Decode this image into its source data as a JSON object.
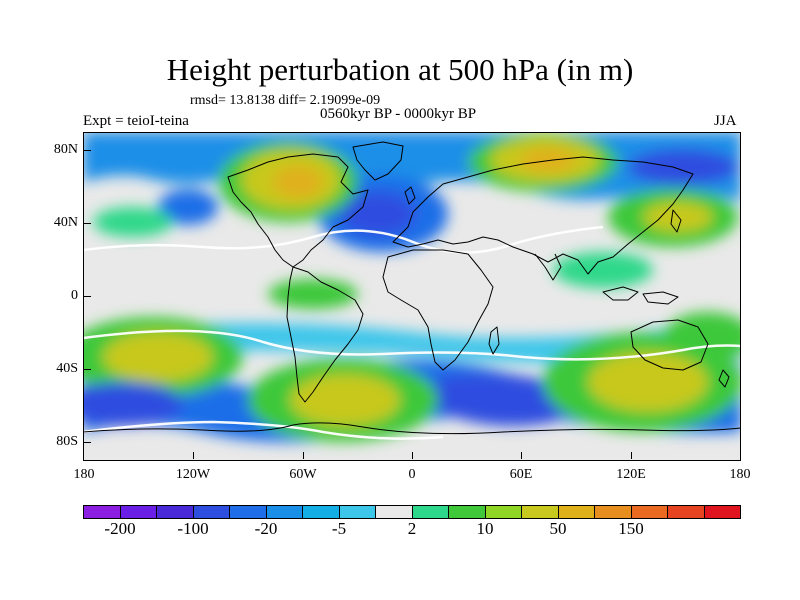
{
  "title": "Height perturbation at 500 hPa (in m)",
  "stats": "rmsd= 13.8138 diff= 2.19099e-09",
  "period": "0560kyr BP - 0000kyr BP",
  "experiment": "Expt = teioI-teina",
  "season": "JJA",
  "map": {
    "projection": "cylindrical-equidistant",
    "lon_range": [
      -180,
      180
    ],
    "lat_range": [
      -90,
      90
    ],
    "lat_ticks": [
      80,
      40,
      0,
      -40,
      -80
    ],
    "lat_labels": [
      "80N",
      "40N",
      "0",
      "40S",
      "80S"
    ],
    "lon_ticks": [
      -180,
      -120,
      -60,
      0,
      60,
      120,
      180
    ],
    "lon_labels": [
      "180",
      "120W",
      "60W",
      "0",
      "60E",
      "120E",
      "180"
    ],
    "coastlines": "black-outline"
  },
  "colorbar": {
    "colors": [
      "#8b1ee0",
      "#6a1ee6",
      "#4a2ad8",
      "#2e4ee0",
      "#1f6ee8",
      "#1a8fe8",
      "#14aee6",
      "#3cc6ea",
      "#e9e9e9",
      "#2ed88a",
      "#3ec83a",
      "#8fd624",
      "#c8c81e",
      "#e0b01a",
      "#e88e1e",
      "#ea6a22",
      "#e64420",
      "#e0141e"
    ],
    "labels": [
      "-200",
      "-100",
      "-20",
      "-5",
      "2",
      "10",
      "50",
      "150"
    ]
  }
}
